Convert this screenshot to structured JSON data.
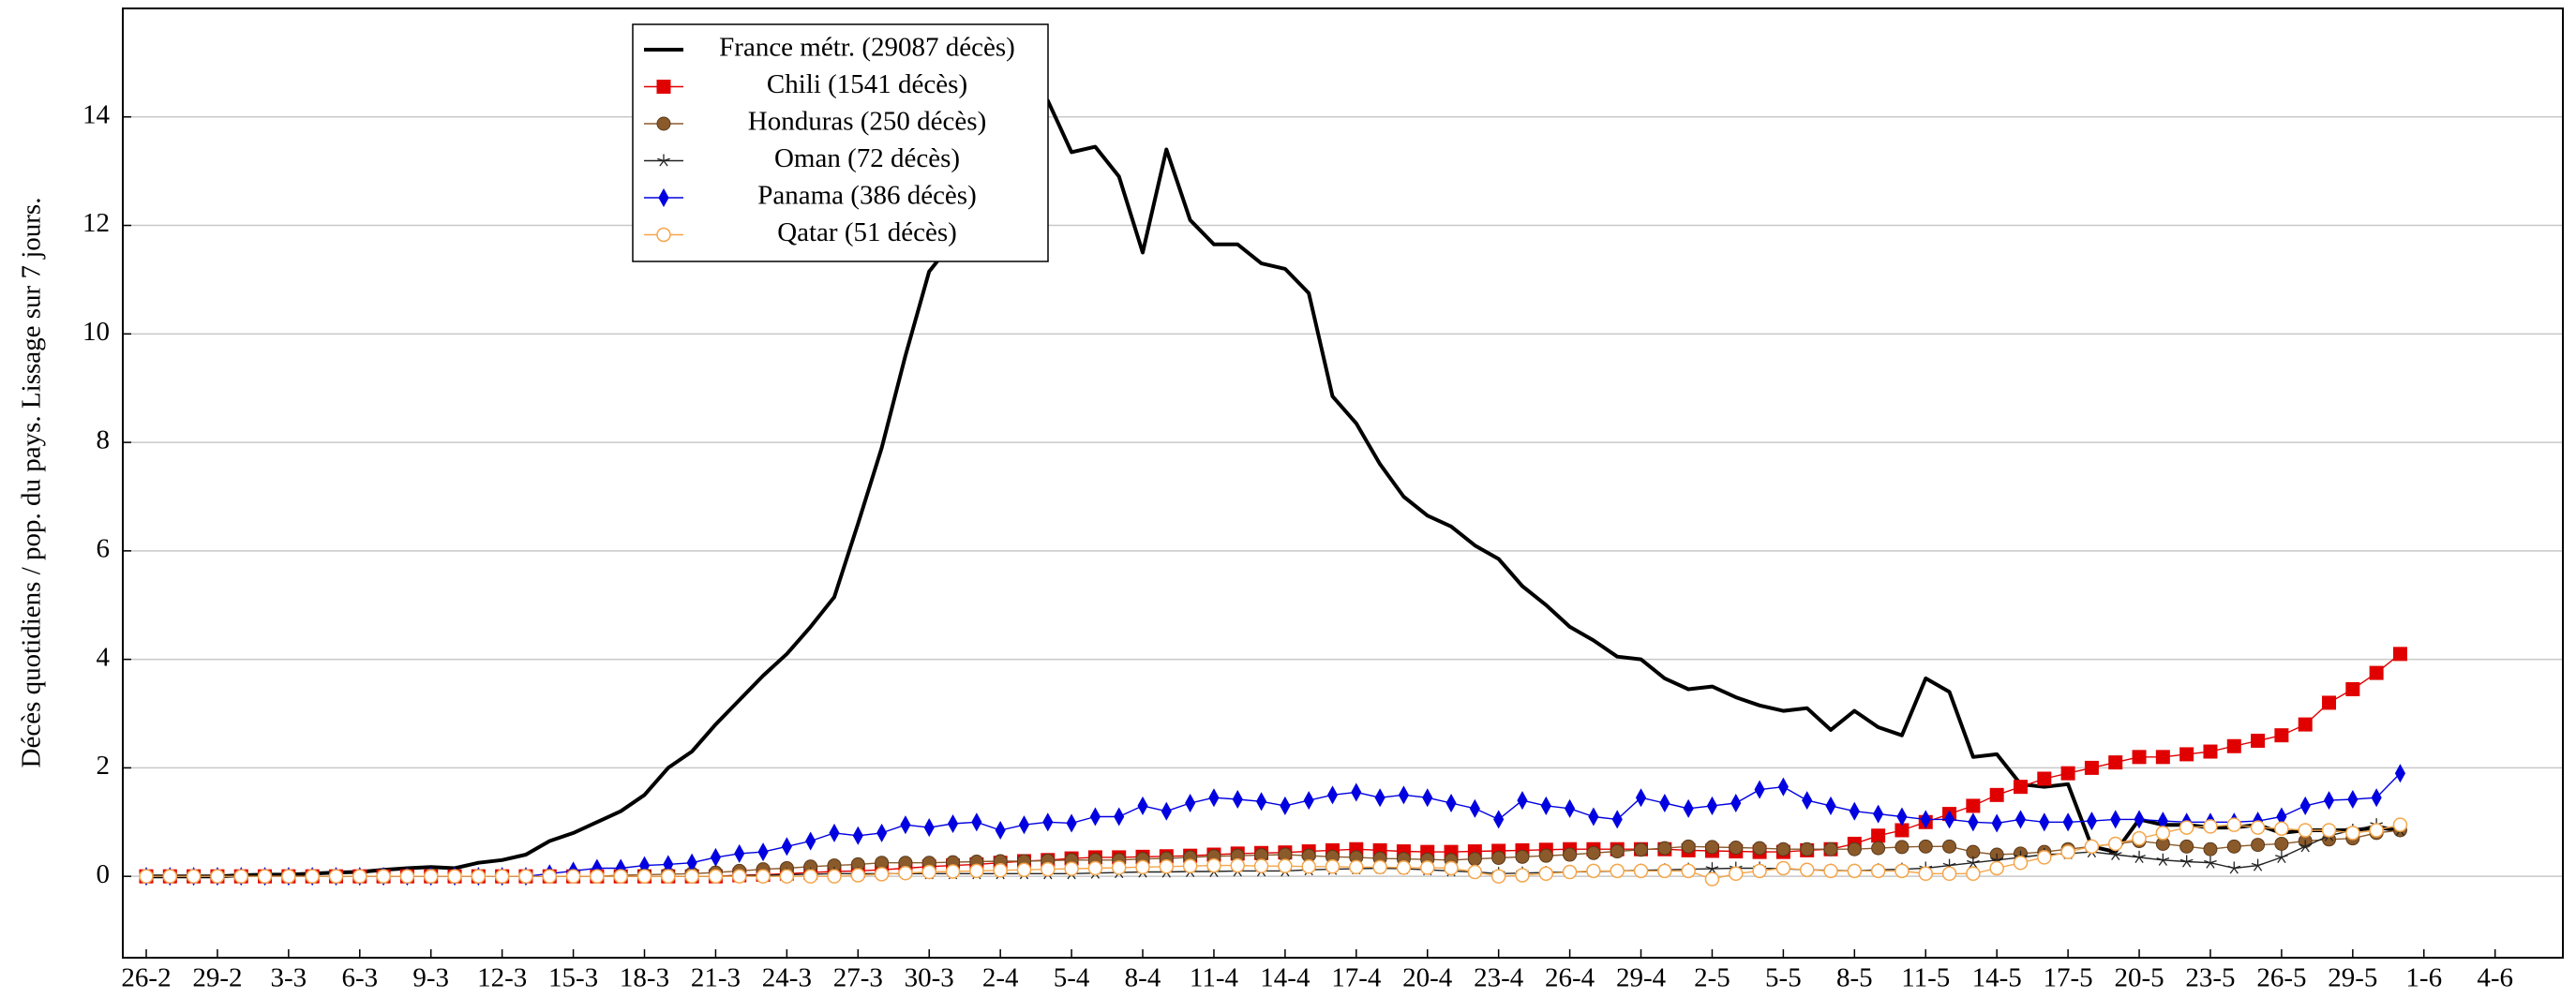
{
  "chart_data": {
    "type": "line",
    "y_label": "Décès quotidiens / pop. du pays. Lissage sur 7 jours.",
    "categories": [
      "26-2",
      null,
      null,
      "29-2",
      null,
      null,
      "3-3",
      null,
      null,
      "6-3",
      null,
      null,
      "9-3",
      null,
      null,
      "12-3",
      null,
      null,
      "15-3",
      null,
      null,
      "18-3",
      null,
      null,
      "21-3",
      null,
      null,
      "24-3",
      null,
      null,
      "27-3",
      null,
      null,
      "30-3",
      null,
      null,
      "2-4",
      null,
      null,
      "5-4",
      null,
      null,
      "8-4",
      null,
      null,
      "11-4",
      null,
      null,
      "14-4",
      null,
      null,
      "17-4",
      null,
      null,
      "20-4",
      null,
      null,
      "23-4",
      null,
      null,
      "26-4",
      null,
      null,
      "29-4",
      null,
      null,
      "2-5",
      null,
      null,
      "5-5",
      null,
      null,
      "8-5",
      null,
      null,
      "11-5",
      null,
      null,
      "14-5",
      null,
      null,
      "17-5",
      null,
      null,
      "20-5",
      null,
      null,
      "23-5",
      null,
      null,
      "26-5",
      null,
      null,
      "29-5",
      null,
      null,
      "1-6",
      null,
      null,
      "4-6"
    ],
    "ylim": [
      -1.5,
      16
    ],
    "yticks": [
      0,
      2,
      4,
      6,
      8,
      10,
      12,
      14
    ],
    "grid": true,
    "legend": "top-left",
    "series": [
      {
        "name": "France métr. (29087 décès)",
        "color": "#000000",
        "marker": "none",
        "values": [
          0,
          0,
          0,
          0,
          0.02,
          0.03,
          0.03,
          0.05,
          0.07,
          0.08,
          0.12,
          0.15,
          0.17,
          0.15,
          0.25,
          0.3,
          0.4,
          0.65,
          0.8,
          1.0,
          1.2,
          1.5,
          2.0,
          2.3,
          2.8,
          3.25,
          3.7,
          4.1,
          4.6,
          5.15,
          6.5,
          7.9,
          9.6,
          11.15,
          11.7,
          12.5,
          13.0,
          13.8,
          14.3,
          13.35,
          13.45,
          12.9,
          11.5,
          13.4,
          12.1,
          11.65,
          11.65,
          11.3,
          11.2,
          10.75,
          8.85,
          8.35,
          7.6,
          7.0,
          6.65,
          6.45,
          6.1,
          5.85,
          5.35,
          5.0,
          4.6,
          4.35,
          4.05,
          4.0,
          3.65,
          3.45,
          3.5,
          3.3,
          3.15,
          3.05,
          3.1,
          2.7,
          3.05,
          2.75,
          2.6,
          3.65,
          3.4,
          2.2,
          2.25,
          1.7,
          1.65,
          1.7,
          0.55,
          0.45,
          1.05,
          0.95,
          0.95,
          0.9,
          0.9,
          0.95,
          0.8,
          0.85,
          0.85,
          0.85,
          0.9,
          0.85,
          null,
          null,
          null,
          null
        ]
      },
      {
        "name": "Chili (1541 décès)",
        "color": "#e00000",
        "marker": "square",
        "values": [
          0,
          0,
          0,
          0,
          0,
          0,
          0,
          0,
          0,
          0,
          0,
          0,
          0,
          0,
          0,
          0,
          0,
          0,
          0,
          0,
          0,
          0,
          0,
          0,
          0,
          0.02,
          0.03,
          0.05,
          0.07,
          0.09,
          0.1,
          0.12,
          0.15,
          0.18,
          0.2,
          0.22,
          0.25,
          0.28,
          0.3,
          0.33,
          0.35,
          0.35,
          0.36,
          0.37,
          0.38,
          0.4,
          0.42,
          0.43,
          0.44,
          0.46,
          0.48,
          0.5,
          0.48,
          0.46,
          0.45,
          0.45,
          0.46,
          0.47,
          0.48,
          0.49,
          0.5,
          0.5,
          0.5,
          0.5,
          0.5,
          0.48,
          0.47,
          0.46,
          0.45,
          0.45,
          0.48,
          0.5,
          0.6,
          0.75,
          0.85,
          1.0,
          1.15,
          1.3,
          1.5,
          1.65,
          1.8,
          1.9,
          2.0,
          2.1,
          2.2,
          2.2,
          2.25,
          2.3,
          2.4,
          2.5,
          2.6,
          2.8,
          3.2,
          3.45,
          3.75,
          4.1,
          null,
          null,
          null,
          null
        ]
      },
      {
        "name": "Honduras (250 décès)",
        "color": "#8b5a2b",
        "marker": "circle",
        "values": [
          0,
          0,
          0,
          0,
          0,
          0,
          0,
          0,
          0,
          0,
          0,
          0,
          0,
          0,
          0,
          0,
          0,
          0,
          0,
          0,
          0.02,
          0.03,
          0.04,
          0.05,
          0.07,
          0.1,
          0.13,
          0.15,
          0.18,
          0.2,
          0.22,
          0.25,
          0.25,
          0.25,
          0.26,
          0.27,
          0.28,
          0.28,
          0.29,
          0.3,
          0.3,
          0.3,
          0.32,
          0.33,
          0.35,
          0.37,
          0.38,
          0.39,
          0.4,
          0.38,
          0.36,
          0.35,
          0.33,
          0.32,
          0.31,
          0.3,
          0.32,
          0.34,
          0.36,
          0.38,
          0.4,
          0.43,
          0.46,
          0.49,
          0.52,
          0.55,
          0.54,
          0.53,
          0.52,
          0.5,
          0.5,
          0.5,
          0.5,
          0.52,
          0.54,
          0.55,
          0.55,
          0.45,
          0.4,
          0.42,
          0.45,
          0.5,
          0.55,
          0.6,
          0.65,
          0.6,
          0.55,
          0.5,
          0.55,
          0.58,
          0.6,
          0.65,
          0.68,
          0.7,
          0.8,
          0.85,
          null,
          null,
          null,
          null
        ]
      },
      {
        "name": "Oman (72 décès)",
        "color": "#222222",
        "marker": "star",
        "values": [
          0,
          0,
          0,
          0,
          0,
          0,
          0,
          0,
          0,
          0,
          0,
          0,
          0,
          0,
          0,
          0,
          0,
          0,
          0,
          0,
          0,
          0,
          0,
          0,
          0,
          0.01,
          0.02,
          0.03,
          0.04,
          0.05,
          0.05,
          0.05,
          0.05,
          0.05,
          0.05,
          0.05,
          0.05,
          0.05,
          0.05,
          0.05,
          0.06,
          0.07,
          0.08,
          0.08,
          0.09,
          0.09,
          0.1,
          0.1,
          0.1,
          0.12,
          0.13,
          0.14,
          0.15,
          0.14,
          0.12,
          0.1,
          0.08,
          0.05,
          0.06,
          0.07,
          0.08,
          0.09,
          0.1,
          0.11,
          0.12,
          0.13,
          0.14,
          0.15,
          0.15,
          0.14,
          0.12,
          0.11,
          0.1,
          0.12,
          0.13,
          0.15,
          0.2,
          0.25,
          0.3,
          0.35,
          0.4,
          0.42,
          0.45,
          0.4,
          0.35,
          0.3,
          0.27,
          0.25,
          0.15,
          0.2,
          0.35,
          0.55,
          0.75,
          0.85,
          0.95,
          0.85,
          null,
          null,
          null,
          null
        ]
      },
      {
        "name": "Panama (386 décès)",
        "color": "#0000e0",
        "marker": "diamond",
        "values": [
          0,
          0,
          0,
          0,
          0,
          0,
          0,
          0,
          0,
          0,
          0,
          0,
          0,
          0,
          0,
          0,
          0,
          0.05,
          0.1,
          0.15,
          0.15,
          0.2,
          0.22,
          0.25,
          0.35,
          0.42,
          0.45,
          0.55,
          0.65,
          0.8,
          0.75,
          0.8,
          0.95,
          0.9,
          0.97,
          1.0,
          0.85,
          0.95,
          1.0,
          0.98,
          1.1,
          1.1,
          1.3,
          1.2,
          1.35,
          1.45,
          1.42,
          1.38,
          1.3,
          1.4,
          1.5,
          1.55,
          1.45,
          1.5,
          1.45,
          1.35,
          1.25,
          1.05,
          1.4,
          1.3,
          1.25,
          1.1,
          1.05,
          1.45,
          1.35,
          1.25,
          1.3,
          1.35,
          1.6,
          1.65,
          1.4,
          1.3,
          1.2,
          1.15,
          1.1,
          1.05,
          1.05,
          1.0,
          0.98,
          1.05,
          1.0,
          1.0,
          1.02,
          1.05,
          1.05,
          1.02,
          1.0,
          1.0,
          1.0,
          1.02,
          1.1,
          1.3,
          1.4,
          1.42,
          1.45,
          1.9,
          null,
          null,
          null,
          null
        ]
      },
      {
        "name": "Qatar (51 décès)",
        "color": "#f5a54a",
        "marker": "open-circle",
        "values": [
          0,
          0,
          0,
          0,
          0,
          0,
          0,
          0,
          0,
          0,
          0,
          0,
          0,
          0,
          0,
          0,
          0,
          0,
          0,
          0,
          0,
          0,
          0,
          0,
          0,
          0,
          0,
          0,
          0,
          0,
          0.02,
          0.04,
          0.06,
          0.08,
          0.09,
          0.1,
          0.11,
          0.12,
          0.13,
          0.14,
          0.15,
          0.16,
          0.17,
          0.18,
          0.19,
          0.2,
          0.2,
          0.19,
          0.19,
          0.18,
          0.18,
          0.17,
          0.17,
          0.16,
          0.16,
          0.15,
          0.08,
          0.0,
          0.02,
          0.05,
          0.08,
          0.1,
          0.1,
          0.1,
          0.1,
          0.1,
          -0.05,
          0.05,
          0.1,
          0.15,
          0.12,
          0.1,
          0.1,
          0.1,
          0.1,
          0.05,
          0.05,
          0.05,
          0.15,
          0.25,
          0.35,
          0.45,
          0.55,
          0.6,
          0.7,
          0.8,
          0.9,
          0.92,
          0.95,
          0.9,
          0.88,
          0.85,
          0.85,
          0.8,
          0.85,
          0.95,
          null,
          null,
          null,
          null
        ]
      }
    ]
  }
}
